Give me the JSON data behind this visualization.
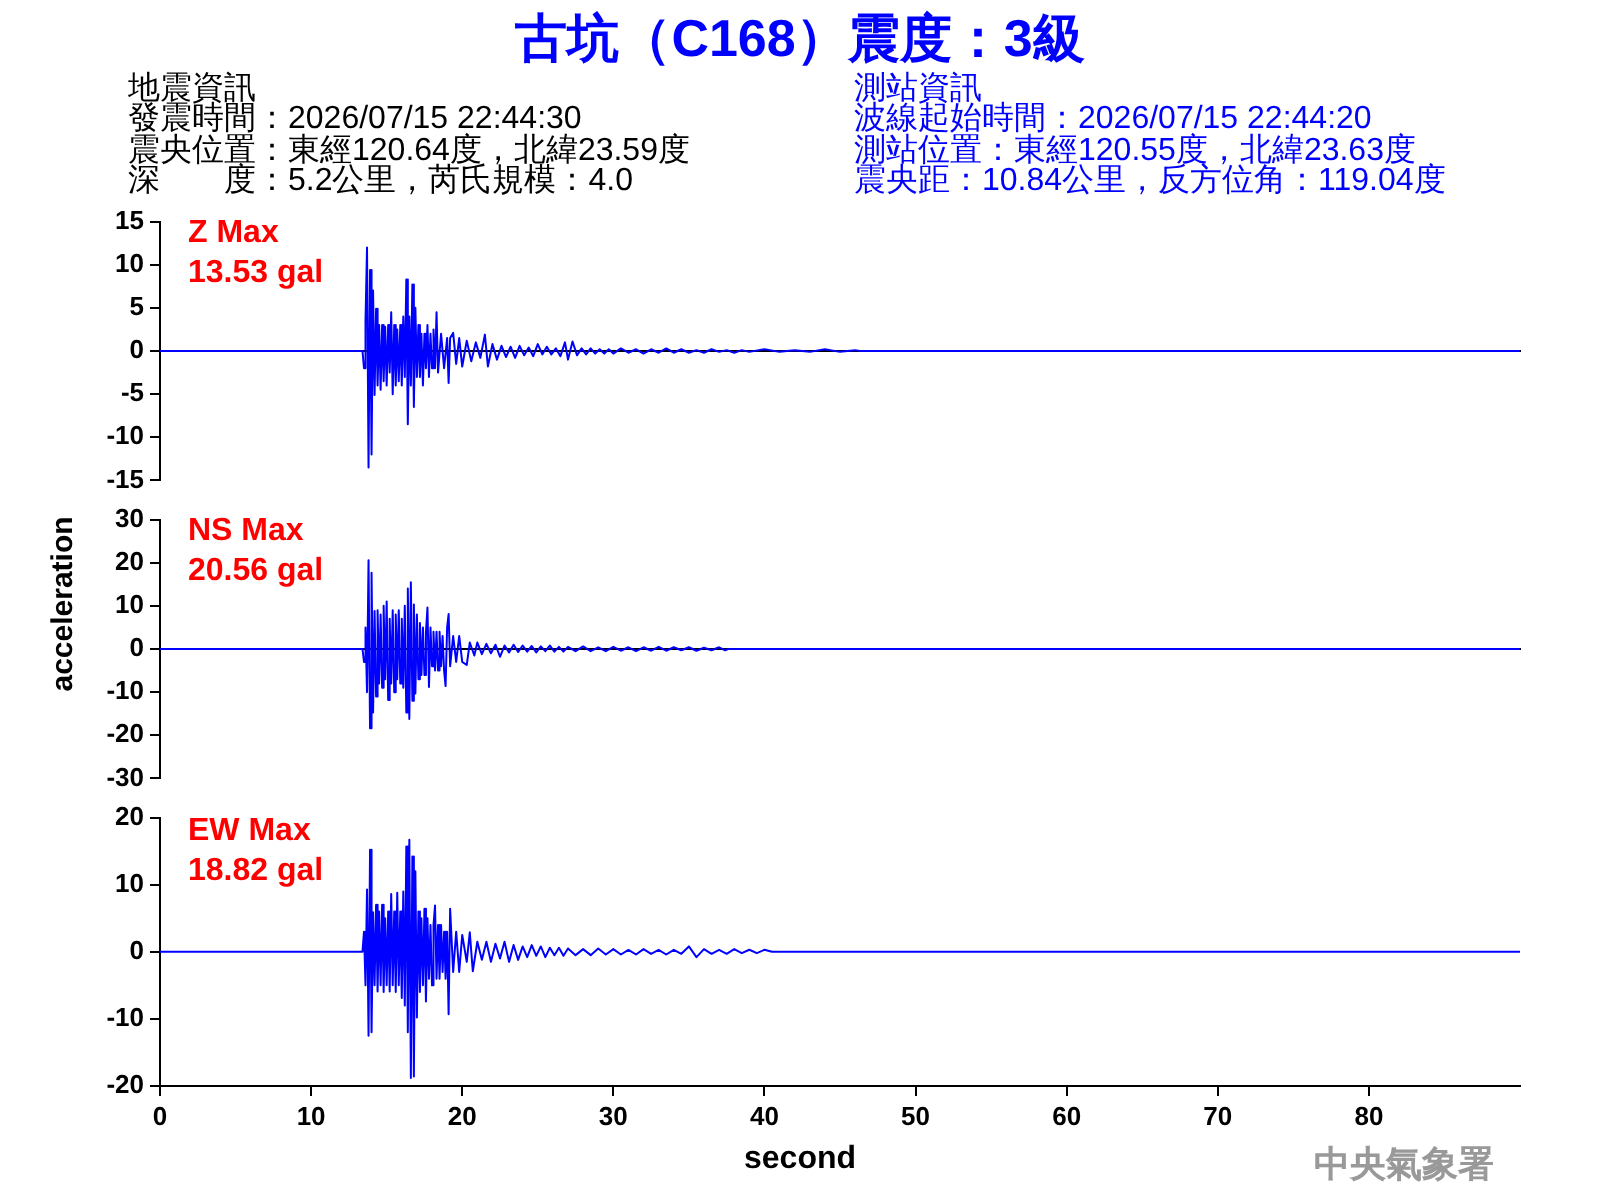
{
  "chart_data": [
    {
      "type": "line",
      "title": "古坑（C168）震度：3級",
      "annotations": [
        "Z Max\n13.53 gal",
        "地震資訊",
        "發震時間：2026/07/15 22:44:30",
        "震央位置：東經120.64度，北緯23.59度",
        "深　　度：5.2公里，芮氏規模：4.0",
        "測站資訊",
        "波線起始時間：2026/07/15 22:44:20",
        "測站位置：東經120.55度，北緯23.63度",
        "震央距：10.84公里，反方位角：119.04度"
      ],
      "x": [
        0,
        13.4,
        13.5,
        13.6,
        13.7,
        13.8,
        13.9,
        14.0,
        14.1,
        14.2,
        14.3,
        14.4,
        14.5,
        14.6,
        14.7,
        14.8,
        14.9,
        15.0,
        15.1,
        15.2,
        15.3,
        15.4,
        15.5,
        15.6,
        15.7,
        15.8,
        15.9,
        16.0,
        16.1,
        16.2,
        16.3,
        16.4,
        16.5,
        16.6,
        16.7,
        16.8,
        16.9,
        17.0,
        17.1,
        17.2,
        17.3,
        17.4,
        17.5,
        17.6,
        17.7,
        17.8,
        17.9,
        18.0,
        18.1,
        18.2,
        18.3,
        18.4,
        18.6,
        18.8,
        19.0,
        19.1,
        19.2,
        19.4,
        19.6,
        19.8,
        20.0,
        20.3,
        20.6,
        20.9,
        21.2,
        21.5,
        21.7,
        22.0,
        22.3,
        22.6,
        22.9,
        23.2,
        23.5,
        23.8,
        24.1,
        24.4,
        24.7,
        25.0,
        25.3,
        25.6,
        25.9,
        26.2,
        26.5,
        26.8,
        27.0,
        27.3,
        27.6,
        27.9,
        28.2,
        28.5,
        28.8,
        29.1,
        29.4,
        29.7,
        30.0,
        30.5,
        31.0,
        31.5,
        32.0,
        32.5,
        33.0,
        33.5,
        34.0,
        34.5,
        35.0,
        35.5,
        36.0,
        36.5,
        37.0,
        37.5,
        38.0,
        38.5,
        39.0,
        40.0,
        41.0,
        42.0,
        43.0,
        44.0,
        45.0,
        46.0,
        46.3,
        90
      ],
      "series": [
        {
          "color": "#0000ff",
          "values": [
            0,
            0,
            -2,
            3.5,
            12,
            -13.5,
            9.4,
            -12,
            7,
            -5.1,
            4.9,
            -4,
            3,
            -4.5,
            3,
            -3.5,
            2.8,
            -4,
            3,
            -2.5,
            4.5,
            -5,
            3,
            -4,
            2.5,
            -3.5,
            3,
            -4,
            4,
            -3,
            8.3,
            -8.5,
            4,
            -4,
            7.7,
            -6.5,
            5,
            -3,
            3,
            -3,
            2,
            -4,
            2,
            -2,
            3,
            -3,
            2,
            -2,
            2.5,
            -2,
            4.5,
            -2.5,
            2,
            -2,
            1.5,
            -3.7,
            1.5,
            2.1,
            -1.5,
            1.5,
            -1.8,
            1.2,
            -1.2,
            1.0,
            -0.8,
            1.9,
            -1.8,
            0.8,
            -1.0,
            0.6,
            -0.7,
            0.5,
            -0.8,
            0.6,
            -0.5,
            0.4,
            -0.6,
            0.8,
            -0.4,
            0.5,
            -0.4,
            0.3,
            -0.6,
            1.0,
            -1.0,
            1.1,
            -0.5,
            0.3,
            -0.4,
            0.3,
            -0.3,
            0.2,
            -0.3,
            0.2,
            -0.3,
            0.3,
            -0.2,
            0.2,
            -0.3,
            0.2,
            -0.2,
            0.3,
            -0.2,
            0.2,
            -0.2,
            0.1,
            -0.2,
            0.2,
            -0.1,
            0.1,
            -0.2,
            0.1,
            -0.1,
            0.2,
            -0.1,
            0.1,
            -0.1,
            0.2,
            -0.1,
            0.1,
            0,
            0
          ]
        }
      ],
      "xlim": [
        0,
        90
      ],
      "ylim": [
        -15,
        15
      ],
      "yticks": [
        -15,
        -10,
        -5,
        0,
        5,
        10,
        15
      ],
      "tick_labels": "y"
    },
    {
      "type": "line",
      "ylabel": "acceleration",
      "annotations": [
        "NS Max\n20.56 gal"
      ],
      "x": [
        0,
        13.4,
        13.5,
        13.6,
        13.7,
        13.8,
        13.9,
        14.0,
        14.1,
        14.2,
        14.3,
        14.4,
        14.5,
        14.6,
        14.7,
        14.8,
        14.9,
        15.0,
        15.1,
        15.2,
        15.3,
        15.4,
        15.5,
        15.6,
        15.7,
        15.8,
        15.9,
        16.0,
        16.1,
        16.2,
        16.3,
        16.4,
        16.5,
        16.6,
        16.7,
        16.8,
        16.9,
        17.0,
        17.1,
        17.2,
        17.3,
        17.4,
        17.5,
        17.6,
        17.7,
        17.8,
        17.9,
        18.0,
        18.1,
        18.2,
        18.3,
        18.4,
        18.5,
        18.6,
        18.7,
        18.8,
        18.9,
        19.0,
        19.1,
        19.2,
        19.4,
        19.6,
        19.8,
        20.0,
        20.3,
        20.5,
        20.8,
        21.0,
        21.3,
        21.6,
        21.9,
        22.2,
        22.5,
        22.8,
        23.1,
        23.4,
        23.7,
        24.0,
        24.3,
        24.6,
        24.9,
        25.2,
        25.5,
        25.8,
        26.1,
        26.4,
        26.7,
        27.0,
        27.5,
        28.0,
        28.5,
        29.0,
        29.5,
        30.0,
        30.5,
        31.0,
        31.5,
        32.0,
        32.5,
        33.0,
        33.5,
        34.0,
        34.5,
        35.0,
        35.5,
        36.0,
        36.5,
        37.0,
        37.4,
        37.6,
        90
      ],
      "series": [
        {
          "color": "#0000ff",
          "values": [
            0,
            0,
            -3,
            5,
            -10,
            20.6,
            -18.4,
            17.7,
            -14.7,
            8.8,
            -11,
            9,
            -8,
            8,
            -9,
            10,
            -7,
            11,
            -11.8,
            7,
            -8,
            9,
            -10,
            8,
            -7,
            9,
            -8,
            7,
            -9,
            10,
            -14.7,
            14,
            -16.2,
            15.5,
            -12,
            10.3,
            -10.3,
            8,
            -7,
            6,
            -6,
            5,
            -6,
            4,
            9.6,
            -8.8,
            5,
            -4,
            4,
            -5,
            4,
            -5,
            4,
            -4,
            3,
            -5,
            -8.6,
            5,
            8.1,
            -4,
            3,
            -3,
            3,
            -3,
            -3.7,
            1.5,
            -1.5,
            1.5,
            -1.2,
            1.2,
            -1.0,
            1.0,
            -1.8,
            0.8,
            -0.8,
            1.0,
            -0.7,
            0.8,
            -0.6,
            0.7,
            -0.8,
            0.6,
            -0.5,
            0.8,
            -0.6,
            0.5,
            -0.6,
            0.5,
            -0.5,
            0.6,
            -0.5,
            0.4,
            -0.5,
            0.5,
            -0.4,
            0.4,
            -0.5,
            0.4,
            -0.4,
            0.5,
            -0.4,
            0.4,
            -0.3,
            0.4,
            -0.4,
            0.3,
            -0.3,
            0.4,
            -0.3,
            0,
            0
          ]
        }
      ],
      "xlim": [
        0,
        90
      ],
      "ylim": [
        -30,
        30
      ],
      "yticks": [
        -30,
        -20,
        -10,
        0,
        10,
        20,
        30
      ],
      "tick_labels": "y"
    },
    {
      "type": "line",
      "xlabel": "second",
      "annotations": [
        "EW Max\n18.82 gal",
        "中央氣象署"
      ],
      "x": [
        0,
        13.4,
        13.5,
        13.6,
        13.7,
        13.8,
        13.9,
        14.0,
        14.1,
        14.2,
        14.3,
        14.4,
        14.5,
        14.6,
        14.7,
        14.8,
        14.9,
        15.0,
        15.1,
        15.2,
        15.3,
        15.4,
        15.5,
        15.6,
        15.7,
        15.8,
        15.9,
        16.0,
        16.1,
        16.2,
        16.3,
        16.4,
        16.5,
        16.6,
        16.7,
        16.8,
        16.9,
        17.0,
        17.1,
        17.2,
        17.3,
        17.4,
        17.5,
        17.6,
        17.7,
        17.8,
        17.9,
        18.0,
        18.1,
        18.2,
        18.3,
        18.4,
        18.5,
        18.6,
        18.7,
        18.8,
        18.9,
        19.0,
        19.1,
        19.2,
        19.4,
        19.6,
        19.8,
        20.0,
        20.3,
        20.5,
        20.7,
        21.0,
        21.3,
        21.6,
        21.9,
        22.2,
        22.5,
        22.8,
        23.1,
        23.4,
        23.7,
        24.0,
        24.3,
        24.6,
        24.9,
        25.2,
        25.5,
        25.8,
        26.1,
        26.4,
        26.7,
        27.0,
        27.5,
        28.0,
        28.5,
        29.0,
        29.5,
        30.0,
        30.5,
        31.0,
        31.5,
        32.0,
        32.5,
        33.0,
        33.5,
        34.0,
        34.5,
        35.0,
        35.5,
        36.0,
        36.5,
        37.0,
        37.5,
        38.0,
        38.5,
        39.0,
        39.5,
        40.0,
        40.5,
        90
      ],
      "series": [
        {
          "color": "#0000ff",
          "values": [
            0,
            0,
            3,
            -5,
            9.3,
            -12.5,
            15.2,
            -12,
            5.9,
            -5,
            7,
            -5.9,
            6,
            -5,
            7,
            -6,
            5,
            -5,
            6,
            -5.9,
            8.6,
            -5,
            6,
            -6,
            8.8,
            -5,
            6,
            -6.9,
            9,
            -8,
            15.7,
            -12,
            16.7,
            -18.8,
            14.2,
            -18.6,
            12,
            -9.8,
            6,
            -6,
            5,
            -5,
            6.4,
            -7.4,
            5,
            -4,
            4,
            -5,
            4,
            6.9,
            -4,
            4,
            -4,
            4,
            -3,
            3,
            -4,
            3,
            -9.3,
            6.4,
            -3,
            3,
            -3,
            2.5,
            -1.5,
            2.9,
            -2.9,
            1.5,
            -1.2,
            1.5,
            -1.5,
            1.2,
            -1.0,
            1.5,
            -1.5,
            1.0,
            -1.2,
            0.8,
            -0.8,
            1.0,
            -0.6,
            0.8,
            -0.8,
            0.6,
            -0.5,
            0.6,
            -0.6,
            0.5,
            -0.5,
            0.4,
            -0.5,
            0.5,
            -0.4,
            0.4,
            -0.4,
            0.3,
            -0.4,
            0.4,
            -0.3,
            0.3,
            -0.4,
            0.3,
            -0.3,
            0.8,
            -0.8,
            0.4,
            -0.3,
            0.3,
            -0.3,
            0.4,
            -0.2,
            0.3,
            -0.2,
            0.3,
            0,
            0
          ]
        }
      ],
      "xlim": [
        0,
        90
      ],
      "xticks": [
        0,
        10,
        20,
        30,
        40,
        50,
        60,
        70,
        80
      ],
      "ylim": [
        -20,
        20
      ],
      "yticks": [
        -20,
        -10,
        0,
        10,
        20
      ]
    }
  ]
}
